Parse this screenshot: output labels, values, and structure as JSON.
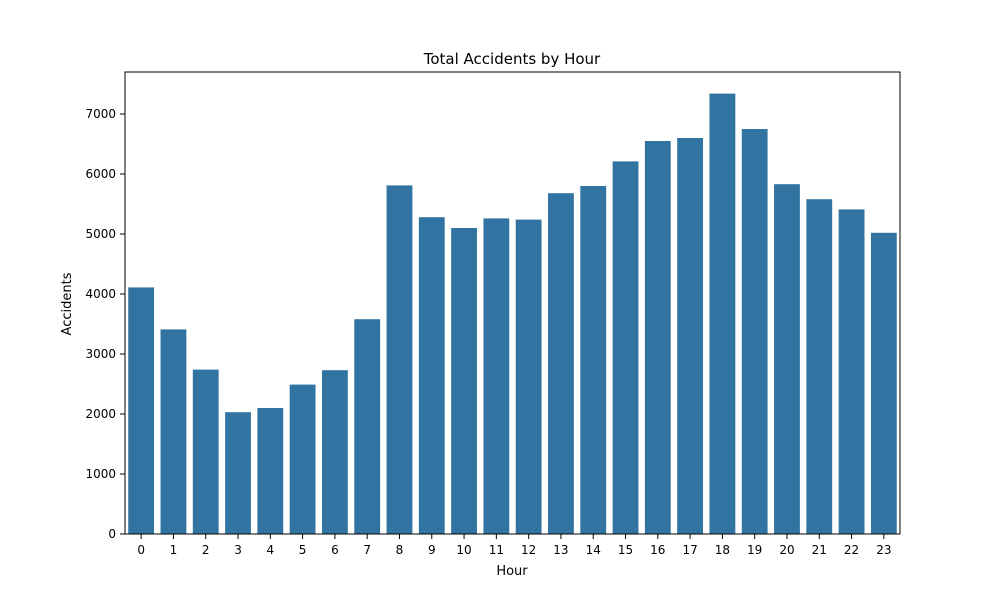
{
  "chart_data": {
    "type": "bar",
    "title": "Total Accidents by Hour",
    "xlabel": "Hour",
    "ylabel": "Accidents",
    "categories": [
      "0",
      "1",
      "2",
      "3",
      "4",
      "5",
      "6",
      "7",
      "8",
      "9",
      "10",
      "11",
      "12",
      "13",
      "14",
      "15",
      "16",
      "17",
      "18",
      "19",
      "20",
      "21",
      "22",
      "23"
    ],
    "values": [
      4110,
      3410,
      2740,
      2030,
      2100,
      2490,
      2730,
      3580,
      5810,
      5280,
      5100,
      5260,
      5240,
      5680,
      5800,
      6210,
      6550,
      6600,
      7340,
      6750,
      5830,
      5580,
      5410,
      5020
    ],
    "ylim": [
      0,
      7700
    ],
    "yticks": [
      0,
      1000,
      2000,
      3000,
      4000,
      5000,
      6000,
      7000
    ],
    "bar_color": "#3274a1",
    "grid": false,
    "legend": "none"
  }
}
